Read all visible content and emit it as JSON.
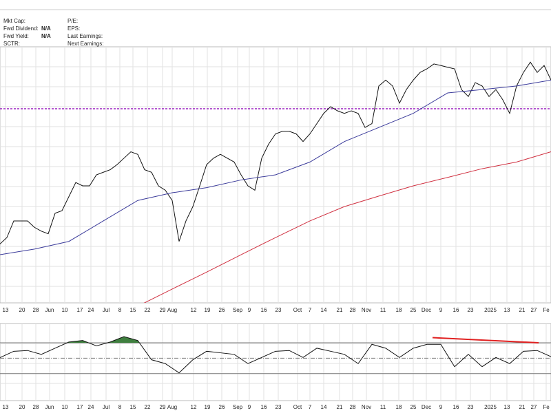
{
  "header": {
    "left": [
      {
        "label": "Mkt Cap:"
      },
      {
        "label": "Fwd Dividend:",
        "value": "N/A"
      },
      {
        "label": "Fwd Yield:",
        "value": "N/A"
      },
      {
        "label": "SCTR:"
      }
    ],
    "right": [
      {
        "label": "P/E:"
      },
      {
        "label": "EPS:"
      },
      {
        "label": "Last Earnings:"
      },
      {
        "label": "Next Earnings:"
      }
    ]
  },
  "chart_data": [
    {
      "type": "line",
      "xlim": [
        0,
        80
      ],
      "ylim": [
        0,
        100
      ],
      "x_labels": [
        {
          "label": "13",
          "at": 0.8
        },
        {
          "label": "20",
          "at": 3.2
        },
        {
          "label": "28",
          "at": 5.2
        },
        {
          "label": "Jun",
          "at": 7.2
        },
        {
          "label": "10",
          "at": 9.4
        },
        {
          "label": "17",
          "at": 11.6
        },
        {
          "label": "24",
          "at": 13.2
        },
        {
          "label": "Jul",
          "at": 15.4
        },
        {
          "label": "8",
          "at": 17.4
        },
        {
          "label": "15",
          "at": 19.3
        },
        {
          "label": "22",
          "at": 21.4
        },
        {
          "label": "29",
          "at": 23.6
        },
        {
          "label": "Aug",
          "at": 25
        },
        {
          "label": "12",
          "at": 28.1
        },
        {
          "label": "19",
          "at": 30.1
        },
        {
          "label": "26",
          "at": 32.2
        },
        {
          "label": "Sep",
          "at": 34.5
        },
        {
          "label": "9",
          "at": 36.2
        },
        {
          "label": "16",
          "at": 38.3
        },
        {
          "label": "23",
          "at": 40.4
        },
        {
          "label": "Oct",
          "at": 43.2
        },
        {
          "label": "7",
          "at": 45
        },
        {
          "label": "14",
          "at": 47
        },
        {
          "label": "21",
          "at": 49.3
        },
        {
          "label": "28",
          "at": 51.2
        },
        {
          "label": "Nov",
          "at": 53.2
        },
        {
          "label": "11",
          "at": 55.6
        },
        {
          "label": "18",
          "at": 57.9
        },
        {
          "label": "25",
          "at": 60
        },
        {
          "label": "Dec",
          "at": 61.9
        },
        {
          "label": "9",
          "at": 64
        },
        {
          "label": "16",
          "at": 66.2
        },
        {
          "label": "23",
          "at": 68.3
        },
        {
          "label": "2025",
          "at": 71.2
        },
        {
          "label": "13",
          "at": 73.6
        },
        {
          "label": "21",
          "at": 75.8
        },
        {
          "label": "27",
          "at": 77.5
        },
        {
          "label": "Fe",
          "at": 79.3
        }
      ],
      "series": [
        {
          "color": "#111111",
          "step": 1,
          "values": [
            23,
            25.5,
            32,
            32,
            32,
            29.5,
            28,
            27,
            35,
            36,
            41.5,
            47,
            45.7,
            45.7,
            50,
            51,
            52,
            54,
            56.5,
            59,
            58,
            52,
            51,
            45.7,
            44,
            40,
            24,
            32,
            37.6,
            45.7,
            54,
            56.5,
            58,
            56.5,
            55,
            50,
            45.7,
            44,
            56.5,
            62,
            66,
            67,
            67,
            66,
            63,
            66,
            70,
            74,
            76.6,
            75,
            74,
            75,
            74,
            68.5,
            70,
            84.7,
            87,
            84.7,
            78,
            83.3,
            87,
            90,
            91.4,
            93.3,
            92.7,
            92,
            91.4,
            83.3,
            80.6,
            86,
            84.7,
            80.6,
            83.3,
            79.3,
            74,
            84.7,
            90,
            94,
            90,
            92.7,
            87
          ]
        },
        {
          "color": "#3a3a9a",
          "step": 5,
          "values": [
            18.8,
            21,
            24,
            32,
            40,
            43,
            45,
            48,
            50,
            55,
            63,
            68.5,
            74,
            82,
            83.3,
            84.7,
            87
          ]
        },
        {
          "color": "#d03040",
          "step": 5,
          "values": [
            null,
            null,
            null,
            null,
            -1.3,
            5.4,
            12,
            18.8,
            25.5,
            32,
            37.6,
            41.7,
            45.7,
            49,
            52.4,
            55,
            59
          ]
        }
      ],
      "reference_line": {
        "value": 75.8,
        "color": "#9a20c0"
      }
    },
    {
      "type": "line",
      "xlim": [
        0,
        80
      ],
      "ylim": [
        -5,
        95
      ],
      "levels": [
        70,
        50,
        30
      ],
      "series": [
        {
          "color": "#111111",
          "step": 2,
          "values": [
            50.8,
            59,
            60,
            55,
            63,
            71,
            73,
            66,
            71,
            78,
            73,
            48,
            43,
            31,
            48,
            59,
            57,
            55,
            43,
            51,
            59,
            60,
            51,
            63,
            59,
            55,
            43,
            68,
            63,
            51,
            63,
            68,
            68,
            39,
            55,
            39,
            51,
            43,
            59,
            60,
            52
          ]
        }
      ],
      "fill_above": 70,
      "fill_color": "#3f7f3f",
      "trendline": {
        "color": "#e02020",
        "x": [
          62.8,
          78.2
        ],
        "values": [
          76.7,
          70
        ]
      }
    }
  ]
}
